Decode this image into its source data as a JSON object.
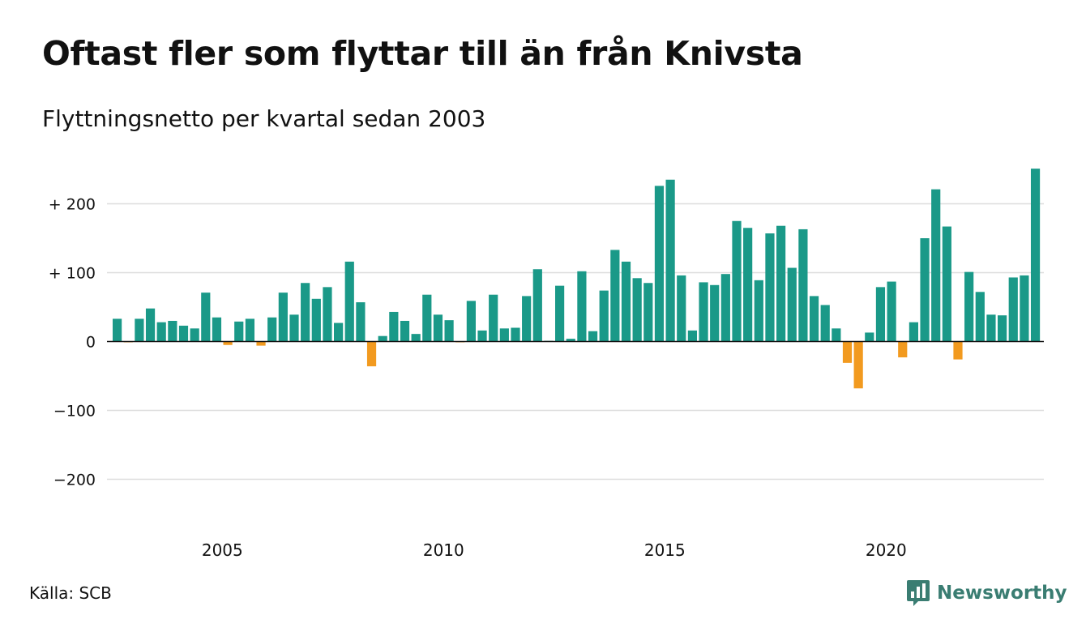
{
  "title": "Oftast fler som flyttar till än från Knivsta",
  "subtitle": "Flyttningsnetto per kvartal sedan 2003",
  "source": "Källa: SCB",
  "brand": "Newsworthy",
  "colors": {
    "positive": "#1a9988",
    "negative": "#f29a1f",
    "grid": "#dddddd",
    "zero_line": "#111111",
    "brand": "#3a7d72"
  },
  "icons": {
    "logo": "bar-chart-speech-bubble-icon"
  },
  "chart_data": {
    "type": "bar",
    "x_start": "2003 Q1",
    "frequency": "quarterly",
    "ylim": [
      -250,
      250
    ],
    "y_ticks": [
      {
        "value": 200,
        "label": "+ 200"
      },
      {
        "value": 100,
        "label": "+ 100"
      },
      {
        "value": 0,
        "label": "0"
      },
      {
        "value": -100,
        "label": "−100"
      },
      {
        "value": -200,
        "label": "−200"
      }
    ],
    "x_ticks": [
      {
        "value": 2005,
        "label": "2005"
      },
      {
        "value": 2010,
        "label": "2010"
      },
      {
        "value": 2015,
        "label": "2015"
      },
      {
        "value": 2020,
        "label": "2020"
      }
    ],
    "grid": true,
    "legend": "none",
    "values": [
      33,
      -1,
      33,
      48,
      28,
      30,
      23,
      19,
      71,
      35,
      -5,
      29,
      33,
      -6,
      35,
      71,
      39,
      85,
      62,
      79,
      27,
      116,
      57,
      -36,
      8,
      43,
      30,
      11,
      68,
      39,
      31,
      -1,
      59,
      16,
      68,
      19,
      20,
      66,
      105,
      1,
      81,
      4,
      102,
      15,
      74,
      133,
      116,
      92,
      85,
      226,
      235,
      96,
      16,
      86,
      82,
      98,
      175,
      165,
      89,
      157,
      168,
      107,
      163,
      66,
      53,
      19,
      -31,
      -68,
      13,
      79,
      87,
      -23,
      28,
      150,
      221,
      167,
      -26,
      101,
      72,
      39,
      38,
      93,
      96,
      251
    ]
  }
}
